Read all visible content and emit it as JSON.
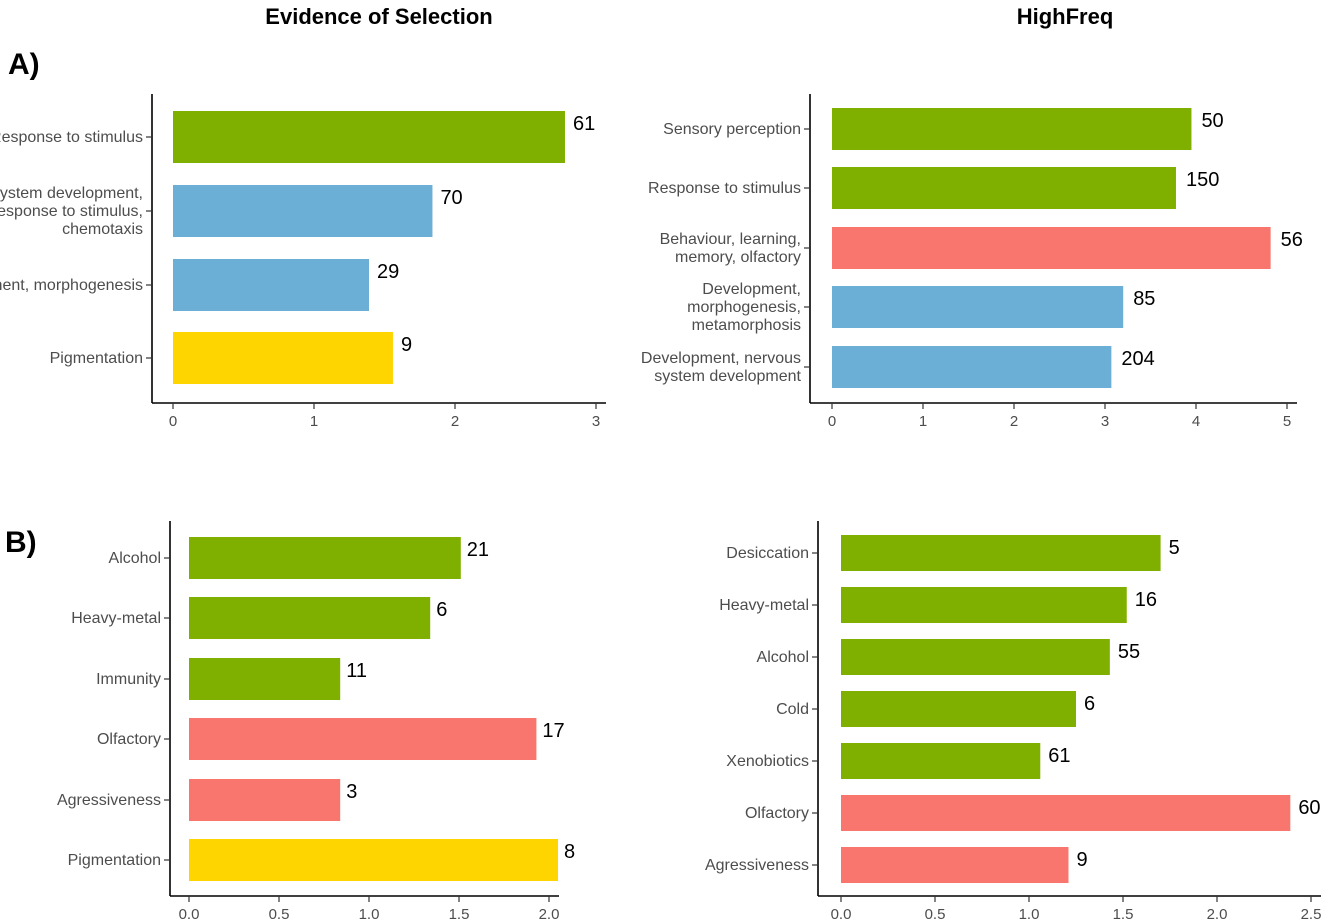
{
  "titles": {
    "left": "Evidence of Selection",
    "right": "HighFreq"
  },
  "panels": {
    "a": "A)",
    "b": "B)"
  },
  "colors": {
    "green": "#7fb000",
    "blue": "#6baed6",
    "red": "#f8766d",
    "yellow": "#ffd500"
  },
  "chart_data": [
    {
      "type": "bar",
      "orientation": "horizontal",
      "panel": "A)",
      "column_title": "Evidence of Selection",
      "xlim": [
        0,
        3
      ],
      "xticks": [
        "0",
        "1",
        "2",
        "3"
      ],
      "categories": [
        [
          "Response to stimulus"
        ],
        [
          "Nervous system development,",
          "response to stimulus,",
          "chemotaxis"
        ],
        [
          "Development, morphogenesis"
        ],
        [
          "Pigmentation"
        ]
      ],
      "values": [
        2.78,
        1.84,
        1.39,
        1.56
      ],
      "labels": [
        "61",
        "70",
        "29",
        "9"
      ],
      "colors": [
        "#7fb000",
        "#6baed6",
        "#6baed6",
        "#ffd500"
      ]
    },
    {
      "type": "bar",
      "orientation": "horizontal",
      "panel": "A)",
      "column_title": "HighFreq",
      "xlim": [
        0,
        5
      ],
      "xticks": [
        "0",
        "1",
        "2",
        "3",
        "4",
        "5"
      ],
      "categories": [
        [
          "Sensory perception"
        ],
        [
          "Response to stimulus"
        ],
        [
          "Behaviour, learning,",
          "memory, olfactory"
        ],
        [
          "Development,",
          "morphogenesis,",
          "metamorphosis"
        ],
        [
          "Development, nervous",
          "system development"
        ]
      ],
      "values": [
        3.95,
        3.78,
        4.82,
        3.2,
        3.07
      ],
      "labels": [
        "50",
        "150",
        "56",
        "85",
        "204"
      ],
      "colors": [
        "#7fb000",
        "#7fb000",
        "#f8766d",
        "#6baed6",
        "#6baed6"
      ]
    },
    {
      "type": "bar",
      "orientation": "horizontal",
      "panel": "B)",
      "column_title": "Evidence of Selection",
      "xlim": [
        0,
        2
      ],
      "xticks": [
        "0.0",
        "0.5",
        "1.0",
        "1.5",
        "2.0"
      ],
      "categories": [
        [
          "Alcohol"
        ],
        [
          "Heavy-metal"
        ],
        [
          "Immunity"
        ],
        [
          "Olfactory"
        ],
        [
          "Agressiveness"
        ],
        [
          "Pigmentation"
        ]
      ],
      "values": [
        1.51,
        1.34,
        0.84,
        1.93,
        0.84,
        2.05
      ],
      "labels": [
        "21",
        "6",
        "11",
        "17",
        "3",
        "8"
      ],
      "colors": [
        "#7fb000",
        "#7fb000",
        "#7fb000",
        "#f8766d",
        "#f8766d",
        "#ffd500"
      ]
    },
    {
      "type": "bar",
      "orientation": "horizontal",
      "panel": "B)",
      "column_title": "HighFreq",
      "xlim": [
        0,
        2.5
      ],
      "xticks": [
        "0.0",
        "0.5",
        "1.0",
        "1.5",
        "2.0",
        "2.5"
      ],
      "categories": [
        [
          "Desiccation"
        ],
        [
          "Heavy-metal"
        ],
        [
          "Alcohol"
        ],
        [
          "Cold"
        ],
        [
          "Xenobiotics"
        ],
        [
          "Olfactory"
        ],
        [
          "Agressiveness"
        ]
      ],
      "values": [
        1.7,
        1.52,
        1.43,
        1.25,
        1.06,
        2.39,
        1.21
      ],
      "labels": [
        "5",
        "16",
        "55",
        "6",
        "61",
        "60",
        "9"
      ],
      "colors": [
        "#7fb000",
        "#7fb000",
        "#7fb000",
        "#7fb000",
        "#7fb000",
        "#f8766d",
        "#f8766d"
      ]
    }
  ]
}
